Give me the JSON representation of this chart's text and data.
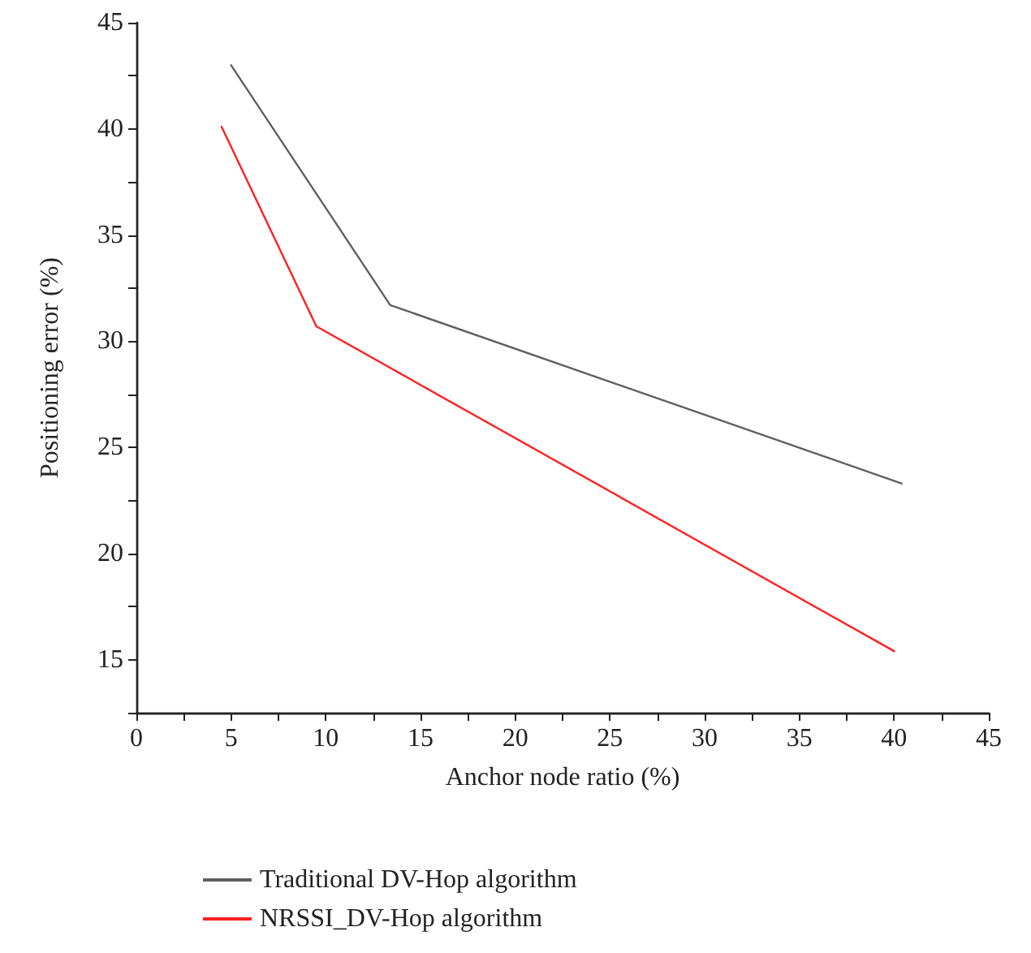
{
  "chart_data": {
    "type": "line",
    "xlabel": "Anchor node ratio (%)",
    "ylabel": "Positioning error (%)",
    "xlim": [
      0,
      45
    ],
    "xticks": [
      0,
      5,
      10,
      15,
      20,
      25,
      30,
      35,
      40,
      45
    ],
    "ylim": [
      12.5,
      45
    ],
    "yticks": [
      15,
      20,
      25,
      30,
      35,
      40,
      45
    ],
    "series": [
      {
        "name": "Traditional DV-Hop algorithm",
        "color": "#606060",
        "x": [
          5,
          13.4,
          40.4
        ],
        "values": [
          43,
          31.7,
          23.3
        ]
      },
      {
        "name": "NRSSI_DV-Hop algorithm",
        "color": "#ff2020",
        "x": [
          4.5,
          9.5,
          40
        ],
        "values": [
          40.1,
          30.7,
          15.4
        ]
      }
    ],
    "grid": false,
    "legend": "bottom",
    "marker": "none",
    "line_style": "solid"
  }
}
